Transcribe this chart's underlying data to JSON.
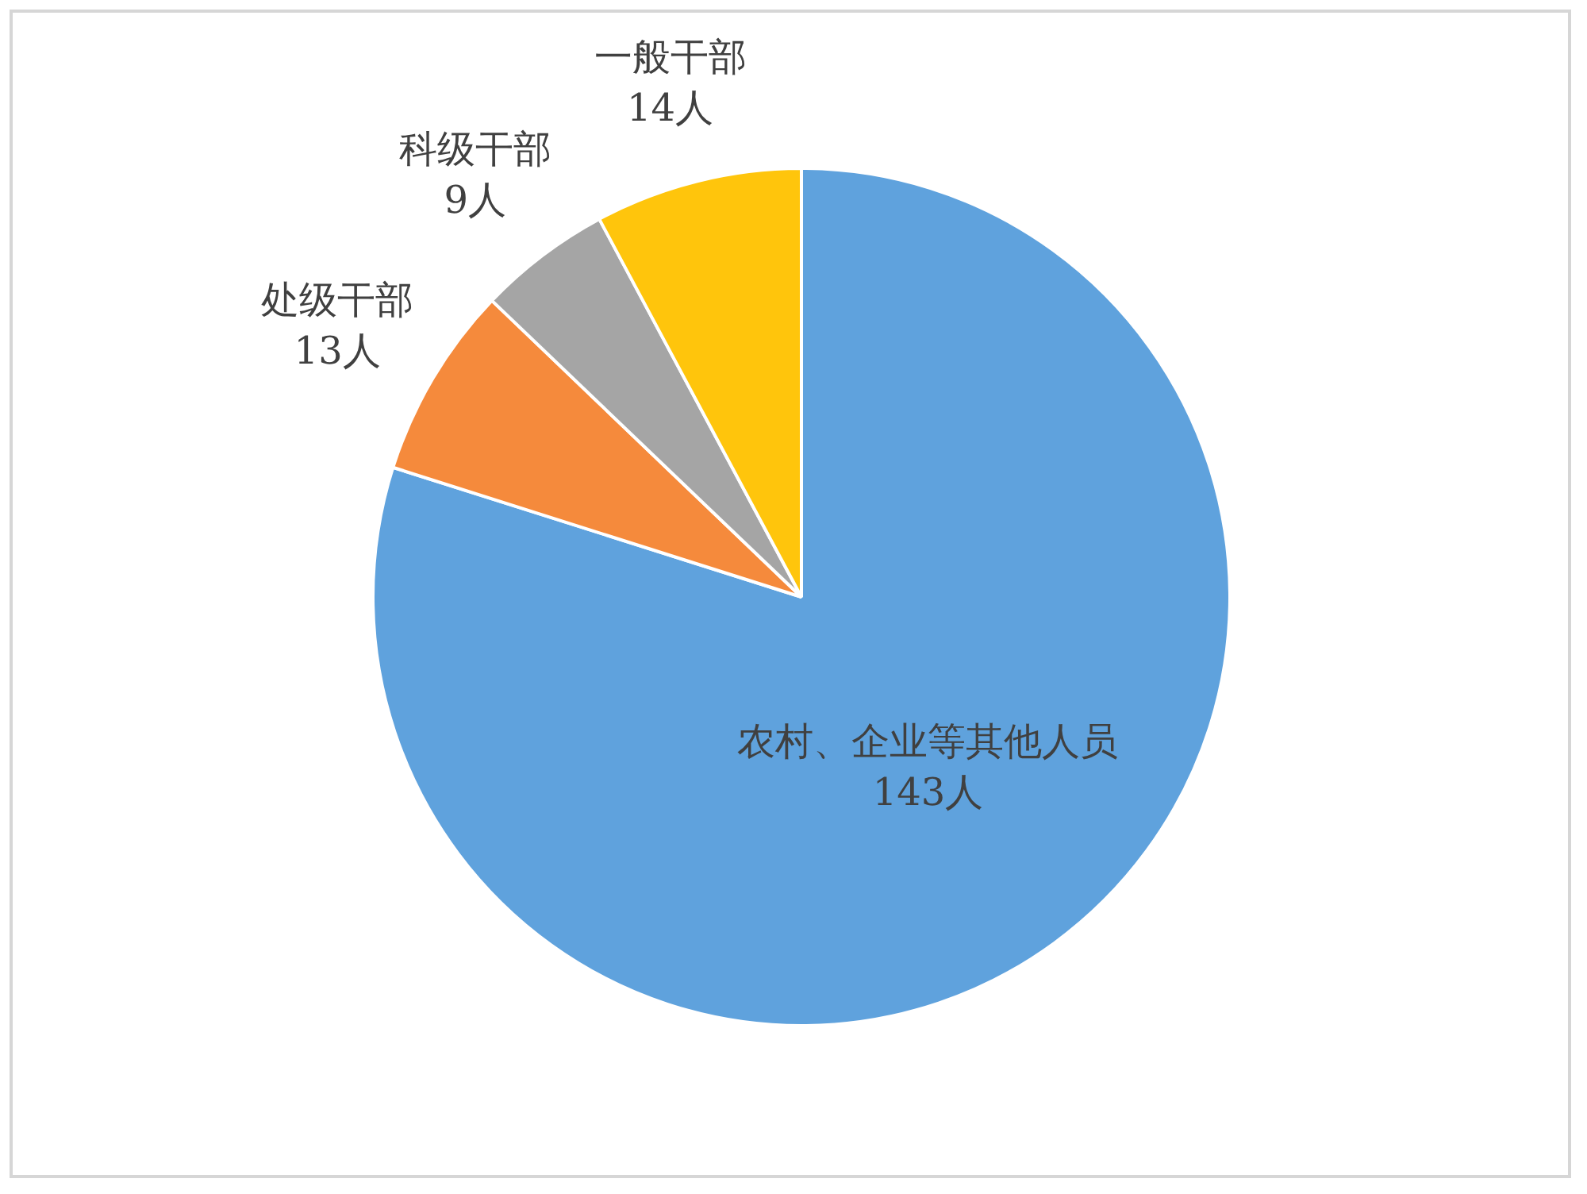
{
  "chart_data": {
    "type": "pie",
    "categories": [
      "农村、企业等其他人员",
      "处级干部",
      "科级干部",
      "一般干部"
    ],
    "values": [
      143,
      13,
      9,
      14
    ],
    "colors": [
      "#5fa2dd",
      "#f58a3c",
      "#a5a5a5",
      "#ffc50c"
    ],
    "value_labels": [
      "143人",
      "13人",
      "9人",
      "14人"
    ]
  }
}
